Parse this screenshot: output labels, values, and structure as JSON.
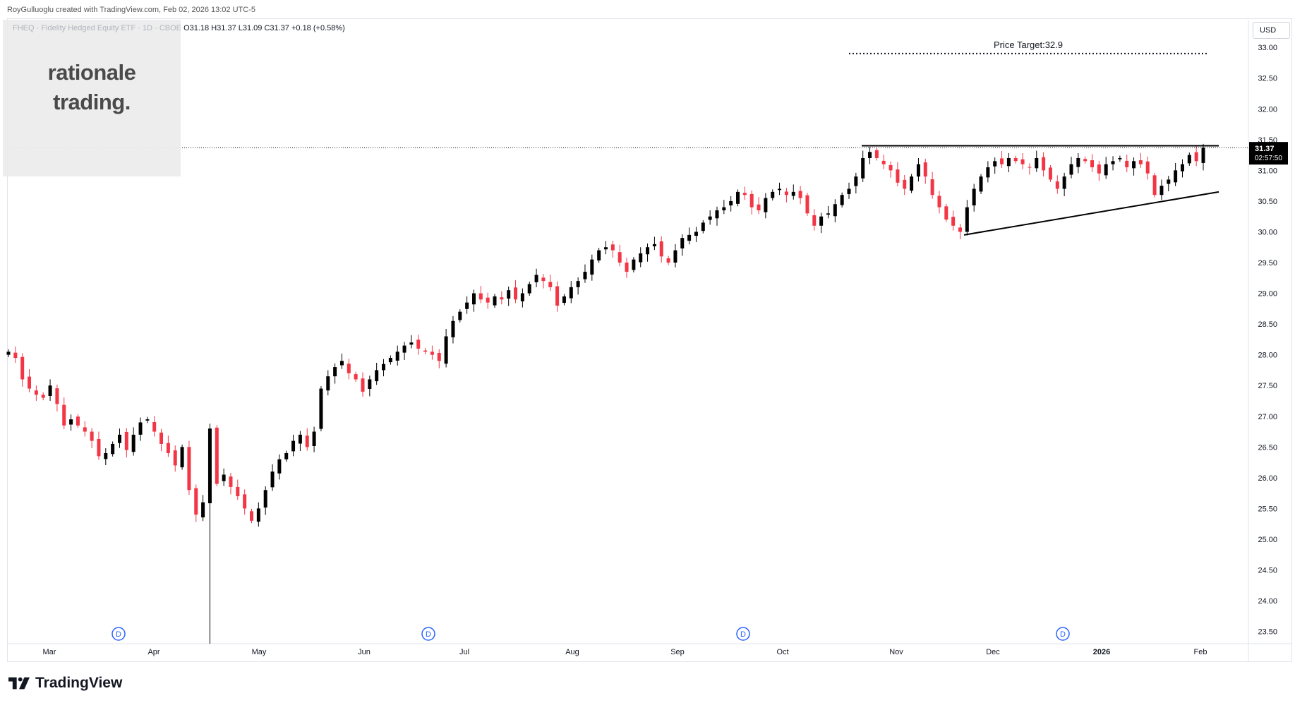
{
  "header": {
    "credit": "RoyGulluoglu created with TradingView.com, Feb 02, 2026 13:02 UTC-5"
  },
  "legend": {
    "symbol": "FHEQ · Fidelity Hedged Equity ETF · 1D · CBOE",
    "ohlc": "O31.18  H31.37  L31.09  C31.37  +0.18 (+0.58%)"
  },
  "watermark": {
    "line1": "rationale",
    "line2": "trading."
  },
  "currency": "USD",
  "price_badge": {
    "price": "31.37",
    "countdown": "02:57:50"
  },
  "footer": {
    "brand": "TradingView"
  },
  "chart_data": {
    "type": "candlestick",
    "symbol": "FHEQ",
    "ylim": [
      23.3,
      33.45
    ],
    "y_ticks": [
      23.5,
      24.0,
      24.5,
      25.0,
      25.5,
      26.0,
      26.5,
      27.0,
      27.5,
      28.0,
      28.5,
      29.0,
      29.5,
      30.0,
      30.5,
      31.0,
      31.5,
      32.0,
      32.5,
      33.0
    ],
    "x_labels": [
      "Mar",
      "Apr",
      "May",
      "Jun",
      "Jul",
      "Aug",
      "Sep",
      "Oct",
      "Nov",
      "Dec",
      "2026",
      "Feb"
    ],
    "up_color": "#000000",
    "down_color": "#f23645",
    "last_price": 31.37,
    "price_target": {
      "label": "Price Target:32.9",
      "value": 32.9
    },
    "resistance": 31.4,
    "support_line": {
      "from": 29.95,
      "to": 30.65
    },
    "dividend_marker": "D",
    "closes": [
      28.05,
      27.95,
      27.6,
      27.45,
      27.35,
      27.3,
      27.5,
      27.2,
      26.85,
      26.95,
      26.85,
      26.75,
      26.6,
      26.35,
      26.4,
      26.55,
      26.7,
      26.45,
      26.7,
      26.9,
      26.95,
      26.75,
      26.55,
      26.4,
      26.2,
      26.5,
      25.8,
      25.4,
      25.6,
      26.8,
      25.9,
      26.05,
      25.85,
      25.7,
      25.5,
      25.3,
      25.5,
      25.8,
      26.1,
      26.3,
      26.4,
      26.6,
      26.7,
      26.5,
      26.75,
      27.45,
      27.65,
      27.8,
      27.9,
      27.7,
      27.6,
      27.4,
      27.6,
      27.75,
      27.85,
      27.95,
      28.05,
      28.15,
      28.2,
      28.1,
      28.05,
      28.0,
      27.9,
      28.3,
      28.55,
      28.7,
      28.85,
      29.0,
      28.9,
      28.85,
      28.95,
      28.9,
      29.05,
      28.9,
      29.0,
      29.15,
      29.3,
      29.2,
      29.1,
      28.8,
      28.95,
      29.1,
      29.2,
      29.35,
      29.55,
      29.7,
      29.75,
      29.7,
      29.5,
      29.35,
      29.55,
      29.65,
      29.75,
      29.8,
      29.6,
      29.5,
      29.7,
      29.9,
      29.95,
      30.0,
      30.15,
      30.25,
      30.35,
      30.4,
      30.5,
      30.65,
      30.6,
      30.4,
      30.35,
      30.55,
      30.65,
      30.7,
      30.6,
      30.65,
      30.55,
      30.3,
      30.1,
      30.25,
      30.3,
      30.45,
      30.6,
      30.7,
      30.9,
      31.2,
      31.3,
      31.2,
      31.1,
      31.0,
      30.8,
      30.7,
      30.9,
      31.1,
      30.9,
      30.6,
      30.4,
      30.2,
      30.1,
      30.0,
      30.4,
      30.7,
      30.9,
      31.05,
      31.15,
      31.1,
      31.2,
      31.15,
      31.1,
      31.05,
      31.2,
      31.0,
      30.85,
      30.7,
      30.9,
      31.1,
      31.2,
      31.15,
      31.05,
      30.95,
      31.1,
      31.15,
      31.2,
      31.05,
      31.15,
      31.1,
      30.95,
      30.6,
      30.75,
      30.85,
      31.0,
      31.1,
      31.25,
      31.15,
      31.37
    ]
  }
}
